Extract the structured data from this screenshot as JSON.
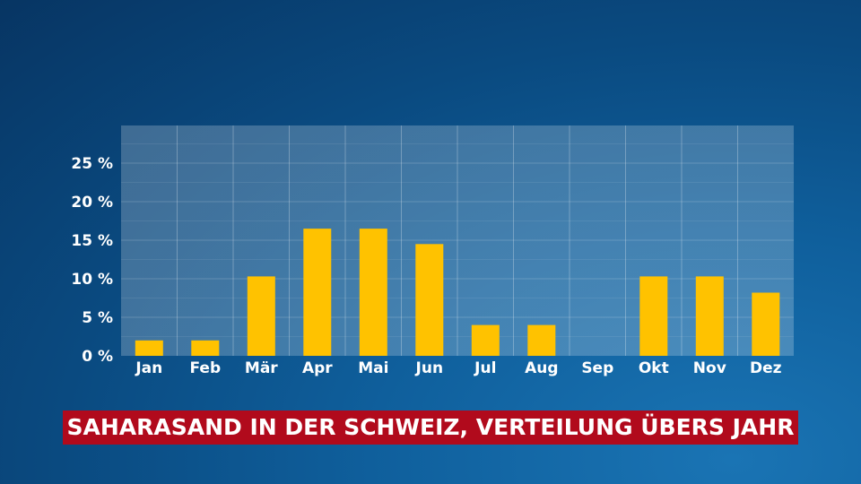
{
  "chart_data": {
    "type": "bar",
    "title": "SAHARASAND IN DER SCHWEIZ, VERTEILUNG ÜBERS JAHR",
    "categories": [
      "Jan",
      "Feb",
      "Mär",
      "Apr",
      "Mai",
      "Jun",
      "Jul",
      "Aug",
      "Sep",
      "Okt",
      "Nov",
      "Dez"
    ],
    "values": [
      2,
      2,
      10.3,
      16.5,
      16.5,
      14.5,
      4,
      4,
      0,
      10.3,
      10.3,
      8.2
    ],
    "ylim": [
      0,
      30
    ],
    "yticks": [
      0,
      5,
      10,
      15,
      20,
      25
    ],
    "ytick_labels": [
      "0 %",
      "5 %",
      "10 %",
      "15 %",
      "20 %",
      "25 %"
    ],
    "xlabel": "",
    "ylabel": "",
    "grid": true,
    "bar_color": "#ffc200"
  }
}
